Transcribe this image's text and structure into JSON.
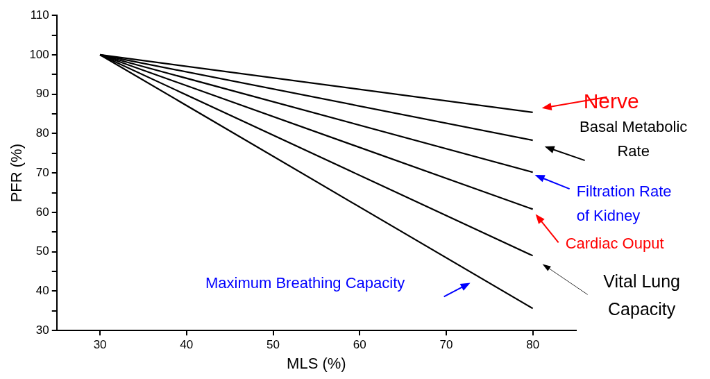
{
  "chart_data": {
    "type": "line",
    "xlabel": "MLS (%)",
    "ylabel": "PFR (%)",
    "x": [
      30,
      80
    ],
    "series": [
      {
        "color": "#000000",
        "values": [
          100,
          85.4
        ]
      },
      {
        "color": "#000000",
        "values": [
          100,
          78.3
        ]
      },
      {
        "color": "#000000",
        "values": [
          100,
          70.2
        ]
      },
      {
        "color": "#000000",
        "values": [
          100,
          60.8
        ]
      },
      {
        "color": "#000000",
        "values": [
          100,
          49.0
        ]
      },
      {
        "color": "#000000",
        "values": [
          100,
          35.6
        ]
      }
    ],
    "xlim": [
      25,
      85
    ],
    "xticks": [
      30,
      40,
      50,
      60,
      70,
      80
    ],
    "ylim": [
      30,
      110
    ],
    "yticks": [
      30,
      {
        "value": 35,
        "label": null
      },
      40,
      {
        "value": 45,
        "label": null
      },
      50,
      {
        "value": 55,
        "label": null
      },
      60,
      {
        "value": 65,
        "label": null
      },
      70,
      {
        "value": 75,
        "label": null
      },
      80,
      {
        "value": 85,
        "label": null
      },
      90,
      {
        "value": 95,
        "label": null
      },
      100,
      {
        "value": 105,
        "label": null
      },
      110
    ],
    "marker": "none",
    "line_style": "solid",
    "annotations": [
      "Nerve",
      "Basal Metabolic Rate",
      "Filtration Rate of Kidney",
      "Cardiac Ouput",
      "Vital Lung Capacity",
      "Maximum Breathing Capacity"
    ]
  }
}
